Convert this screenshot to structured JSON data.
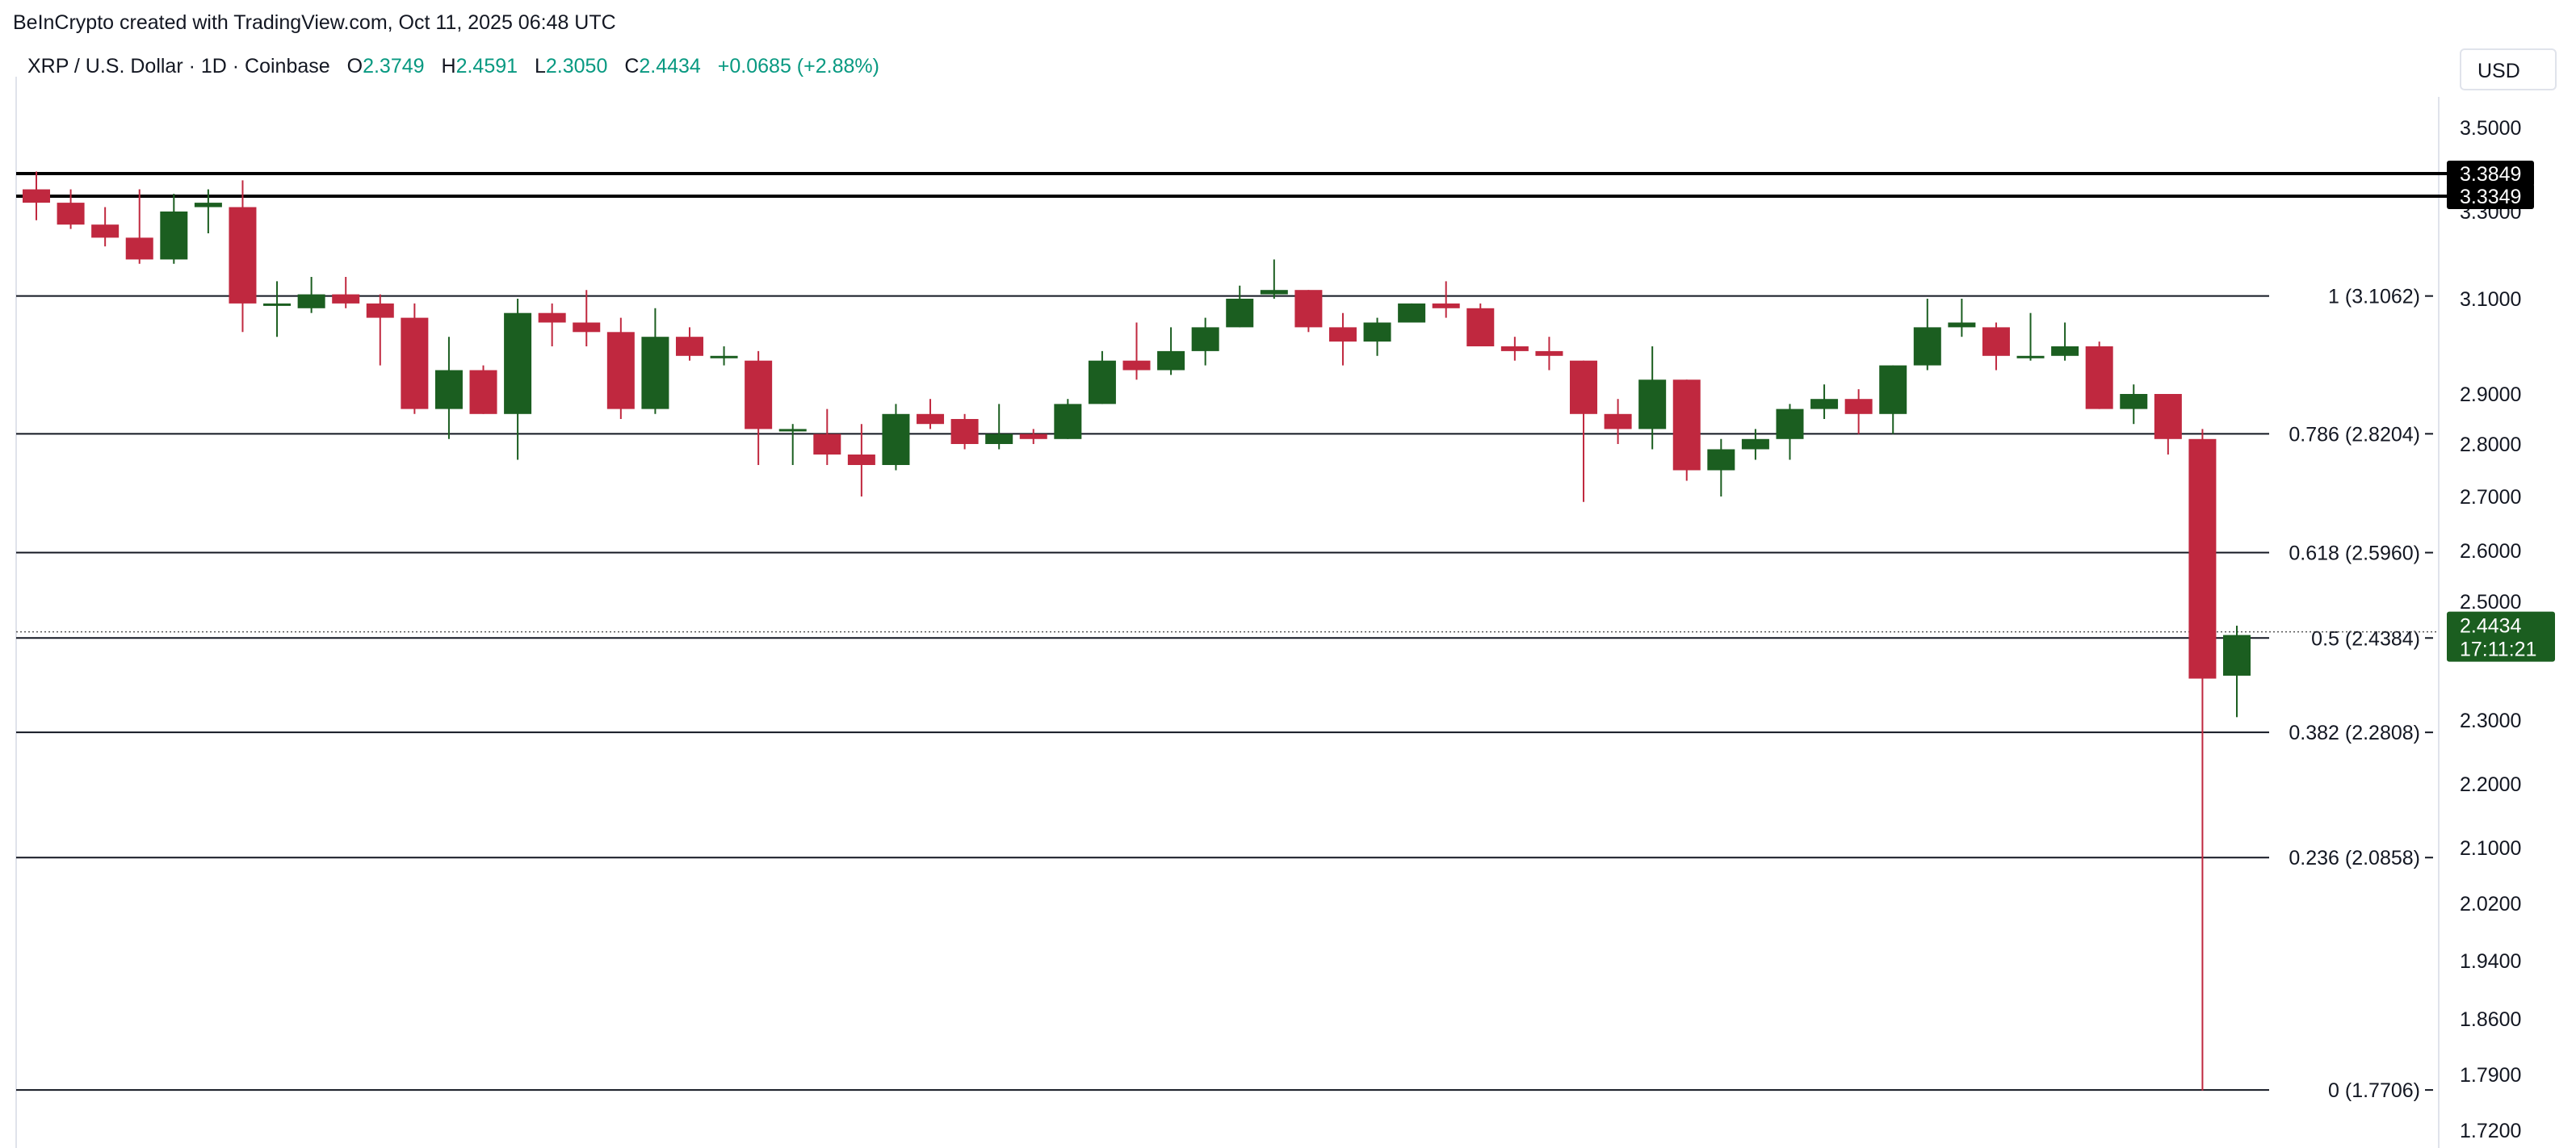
{
  "header": {
    "credit": "BeInCrypto created with TradingView.com, Oct 11, 2025 06:48 UTC",
    "symbol": "XRP / U.S. Dollar · 1D · Coinbase",
    "o_label": "O",
    "o_value": "2.3749",
    "h_label": "H",
    "h_value": "2.4591",
    "l_label": "L",
    "l_value": "2.3050",
    "c_label": "C",
    "c_value": "2.4434",
    "change": "+0.0685 (+2.88%)",
    "currency": "USD"
  },
  "colors": {
    "up": "#1b5e20",
    "down": "#c0283f",
    "line": "#131722",
    "value_accent": "#089981"
  },
  "chart_data": {
    "type": "candlestick",
    "ylim": [
      1.7,
      3.55
    ],
    "grid": false,
    "y_ticks": [
      "3.5000",
      "3.3000",
      "3.1000",
      "2.9000",
      "2.8000",
      "2.7000",
      "2.6000",
      "2.5000",
      "2.3000",
      "2.2000",
      "2.1000",
      "2.0200",
      "1.9400",
      "1.8600",
      "1.7900",
      "1.7200"
    ],
    "ohlc": [
      {
        "o": 3.35,
        "h": 3.39,
        "l": 3.28,
        "c": 3.32
      },
      {
        "o": 3.32,
        "h": 3.35,
        "l": 3.26,
        "c": 3.27
      },
      {
        "o": 3.27,
        "h": 3.31,
        "l": 3.22,
        "c": 3.24
      },
      {
        "o": 3.24,
        "h": 3.35,
        "l": 3.18,
        "c": 3.19
      },
      {
        "o": 3.19,
        "h": 3.34,
        "l": 3.18,
        "c": 3.3
      },
      {
        "o": 3.31,
        "h": 3.35,
        "l": 3.25,
        "c": 3.32
      },
      {
        "o": 3.31,
        "h": 3.37,
        "l": 3.03,
        "c": 3.09
      },
      {
        "o": 3.09,
        "h": 3.14,
        "l": 3.02,
        "c": 3.09
      },
      {
        "o": 3.08,
        "h": 3.15,
        "l": 3.07,
        "c": 3.11
      },
      {
        "o": 3.11,
        "h": 3.15,
        "l": 3.08,
        "c": 3.09
      },
      {
        "o": 3.09,
        "h": 3.11,
        "l": 2.96,
        "c": 3.06
      },
      {
        "o": 3.06,
        "h": 3.09,
        "l": 2.86,
        "c": 2.87
      },
      {
        "o": 2.87,
        "h": 3.02,
        "l": 2.81,
        "c": 2.95
      },
      {
        "o": 2.95,
        "h": 2.96,
        "l": 2.86,
        "c": 2.86
      },
      {
        "o": 2.86,
        "h": 3.1,
        "l": 2.77,
        "c": 3.07
      },
      {
        "o": 3.07,
        "h": 3.09,
        "l": 3.0,
        "c": 3.05
      },
      {
        "o": 3.05,
        "h": 3.12,
        "l": 3.0,
        "c": 3.03
      },
      {
        "o": 3.03,
        "h": 3.06,
        "l": 2.85,
        "c": 2.87
      },
      {
        "o": 2.87,
        "h": 3.08,
        "l": 2.86,
        "c": 3.02
      },
      {
        "o": 3.02,
        "h": 3.04,
        "l": 2.97,
        "c": 2.98
      },
      {
        "o": 2.98,
        "h": 3.0,
        "l": 2.96,
        "c": 2.98
      },
      {
        "o": 2.97,
        "h": 2.99,
        "l": 2.76,
        "c": 2.83
      },
      {
        "o": 2.83,
        "h": 2.84,
        "l": 2.76,
        "c": 2.83
      },
      {
        "o": 2.82,
        "h": 2.87,
        "l": 2.76,
        "c": 2.78
      },
      {
        "o": 2.78,
        "h": 2.84,
        "l": 2.7,
        "c": 2.76
      },
      {
        "o": 2.76,
        "h": 2.88,
        "l": 2.75,
        "c": 2.86
      },
      {
        "o": 2.86,
        "h": 2.89,
        "l": 2.83,
        "c": 2.84
      },
      {
        "o": 2.85,
        "h": 2.86,
        "l": 2.79,
        "c": 2.8
      },
      {
        "o": 2.8,
        "h": 2.88,
        "l": 2.79,
        "c": 2.82
      },
      {
        "o": 2.82,
        "h": 2.83,
        "l": 2.8,
        "c": 2.81
      },
      {
        "o": 2.81,
        "h": 2.89,
        "l": 2.81,
        "c": 2.88
      },
      {
        "o": 2.88,
        "h": 2.99,
        "l": 2.88,
        "c": 2.97
      },
      {
        "o": 2.97,
        "h": 3.05,
        "l": 2.93,
        "c": 2.95
      },
      {
        "o": 2.95,
        "h": 3.04,
        "l": 2.94,
        "c": 2.99
      },
      {
        "o": 2.99,
        "h": 3.06,
        "l": 2.96,
        "c": 3.04
      },
      {
        "o": 3.04,
        "h": 3.13,
        "l": 3.04,
        "c": 3.1
      },
      {
        "o": 3.11,
        "h": 3.19,
        "l": 3.1,
        "c": 3.12
      },
      {
        "o": 3.12,
        "h": 3.12,
        "l": 3.03,
        "c": 3.04
      },
      {
        "o": 3.04,
        "h": 3.07,
        "l": 2.96,
        "c": 3.01
      },
      {
        "o": 3.01,
        "h": 3.06,
        "l": 2.98,
        "c": 3.05
      },
      {
        "o": 3.05,
        "h": 3.09,
        "l": 3.05,
        "c": 3.09
      },
      {
        "o": 3.09,
        "h": 3.14,
        "l": 3.06,
        "c": 3.08
      },
      {
        "o": 3.08,
        "h": 3.09,
        "l": 3.0,
        "c": 3.0
      },
      {
        "o": 3.0,
        "h": 3.02,
        "l": 2.97,
        "c": 2.99
      },
      {
        "o": 2.99,
        "h": 3.02,
        "l": 2.95,
        "c": 2.98
      },
      {
        "o": 2.97,
        "h": 2.97,
        "l": 2.69,
        "c": 2.86
      },
      {
        "o": 2.86,
        "h": 2.89,
        "l": 2.8,
        "c": 2.83
      },
      {
        "o": 2.83,
        "h": 3.0,
        "l": 2.79,
        "c": 2.93
      },
      {
        "o": 2.93,
        "h": 2.93,
        "l": 2.73,
        "c": 2.75
      },
      {
        "o": 2.75,
        "h": 2.81,
        "l": 2.7,
        "c": 2.79
      },
      {
        "o": 2.79,
        "h": 2.83,
        "l": 2.77,
        "c": 2.81
      },
      {
        "o": 2.81,
        "h": 2.88,
        "l": 2.77,
        "c": 2.87
      },
      {
        "o": 2.87,
        "h": 2.92,
        "l": 2.85,
        "c": 2.89
      },
      {
        "o": 2.89,
        "h": 2.91,
        "l": 2.82,
        "c": 2.86
      },
      {
        "o": 2.86,
        "h": 2.96,
        "l": 2.82,
        "c": 2.96
      },
      {
        "o": 2.96,
        "h": 3.1,
        "l": 2.95,
        "c": 3.04
      },
      {
        "o": 3.04,
        "h": 3.1,
        "l": 3.02,
        "c": 3.05
      },
      {
        "o": 3.04,
        "h": 3.05,
        "l": 2.95,
        "c": 2.98
      },
      {
        "o": 2.98,
        "h": 3.07,
        "l": 2.97,
        "c": 2.98
      },
      {
        "o": 2.98,
        "h": 3.05,
        "l": 2.97,
        "c": 3.0
      },
      {
        "o": 3.0,
        "h": 3.01,
        "l": 2.87,
        "c": 2.87
      },
      {
        "o": 2.87,
        "h": 2.92,
        "l": 2.84,
        "c": 2.9
      },
      {
        "o": 2.9,
        "h": 2.9,
        "l": 2.78,
        "c": 2.81
      },
      {
        "o": 2.81,
        "h": 2.83,
        "l": 1.77,
        "c": 2.37
      },
      {
        "o": 2.3749,
        "h": 2.4591,
        "l": 2.305,
        "c": 2.4434
      }
    ],
    "levels": [
      {
        "value": 3.3849,
        "tag": "3.3849"
      },
      {
        "value": 3.3349,
        "tag": "3.3349"
      }
    ],
    "fib_levels": [
      {
        "ratio": "1",
        "value": 3.1062,
        "label": "1 (3.1062)"
      },
      {
        "ratio": "0.786",
        "value": 2.8204,
        "label": "0.786 (2.8204)"
      },
      {
        "ratio": "0.618",
        "value": 2.596,
        "label": "0.618 (2.5960)"
      },
      {
        "ratio": "0.5",
        "value": 2.4384,
        "label": "0.5 (2.4384)"
      },
      {
        "ratio": "0.382",
        "value": 2.2808,
        "label": "0.382 (2.2808)"
      },
      {
        "ratio": "0.236",
        "value": 2.0858,
        "label": "0.236 (2.0858)"
      },
      {
        "ratio": "0",
        "value": 1.7706,
        "label": "0 (1.7706)"
      }
    ],
    "last_price": {
      "value": 2.4434,
      "label": "2.4434",
      "countdown": "17:11:21"
    }
  }
}
